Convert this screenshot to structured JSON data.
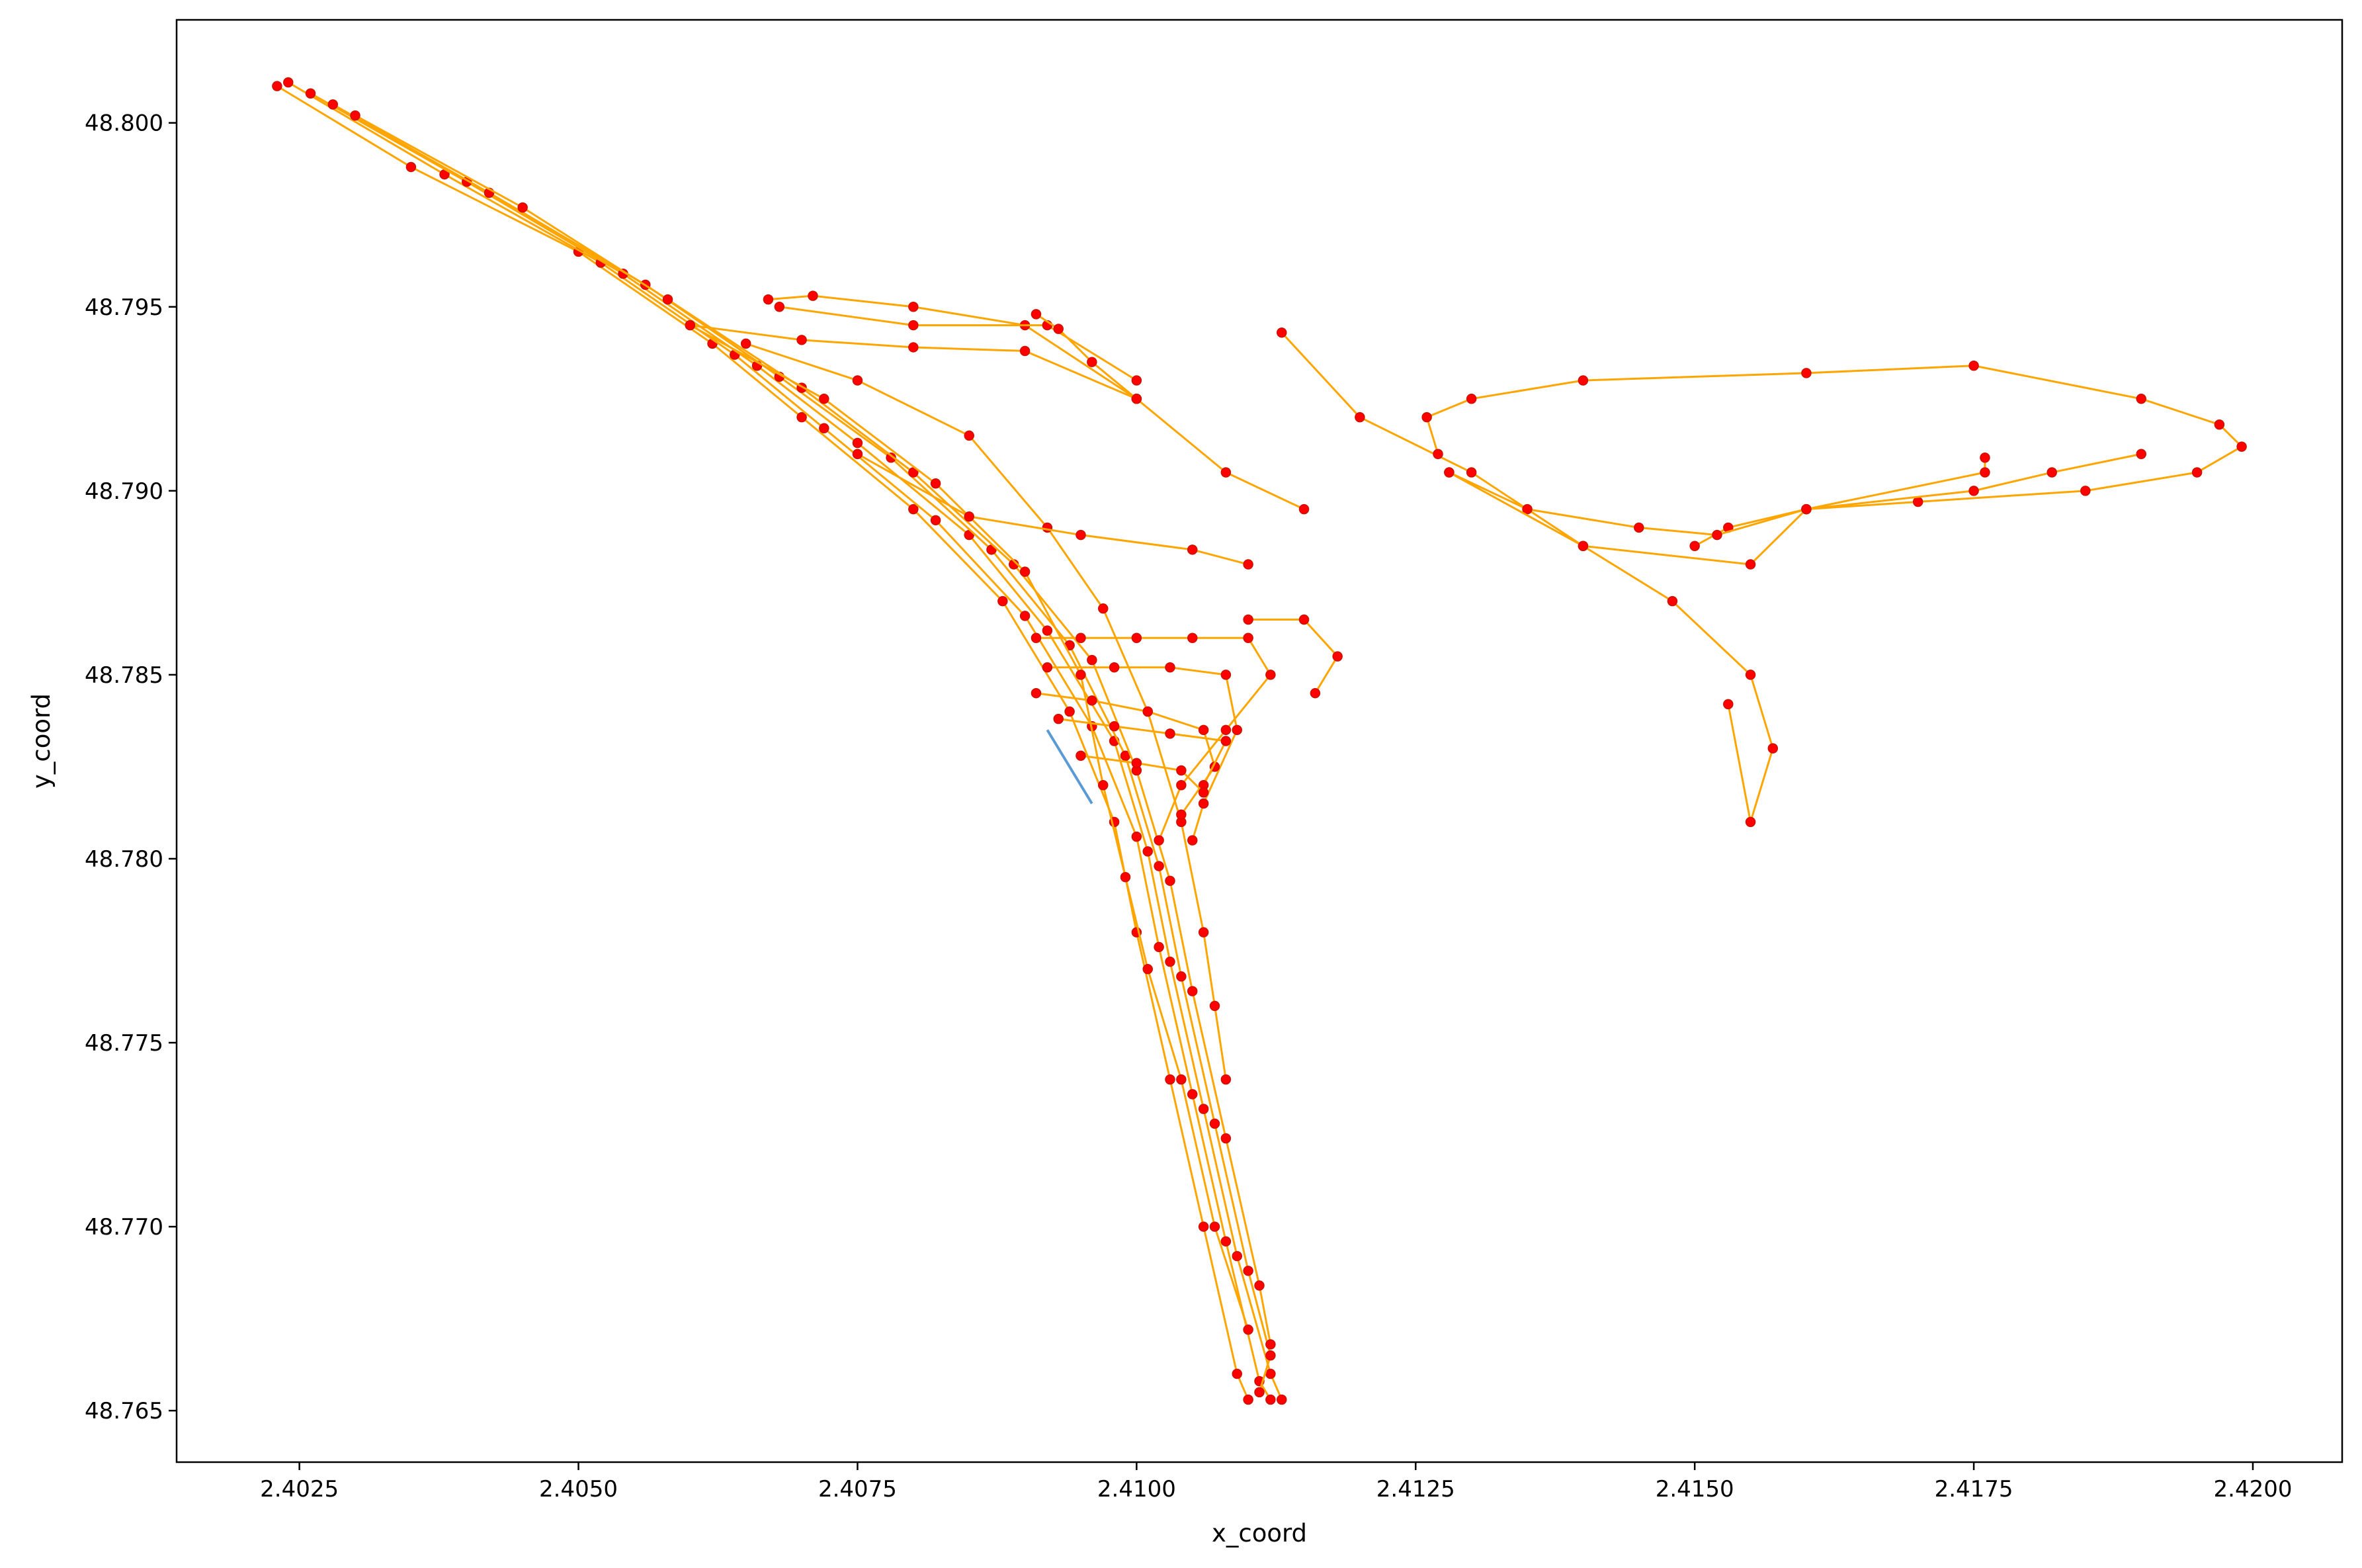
{
  "chart_data": {
    "type": "scatter",
    "title": "",
    "xlabel": "x_coord",
    "ylabel": "y_coord",
    "xlim": [
      2.4014,
      2.4208
    ],
    "ylim": [
      48.7636,
      48.8028
    ],
    "xticks": [
      2.4025,
      2.405,
      2.4075,
      2.41,
      2.4125,
      2.415,
      2.4175,
      2.42
    ],
    "xtick_labels": [
      "2.4025",
      "2.4050",
      "2.4075",
      "2.4100",
      "2.4125",
      "2.4150",
      "2.4175",
      "2.4200"
    ],
    "yticks": [
      48.765,
      48.77,
      48.775,
      48.78,
      48.785,
      48.79,
      48.795,
      48.8
    ],
    "ytick_labels": [
      "48.765",
      "48.770",
      "48.775",
      "48.780",
      "48.785",
      "48.790",
      "48.795",
      "48.800"
    ],
    "grid": false,
    "colors": {
      "line": "#ffa500",
      "marker": "#ff0000",
      "marker_edge": "#cc1100",
      "secondary_line": "#5b9bd5"
    },
    "series": [
      {
        "values": [
          [
            2.4023,
            48.801
          ],
          [
            2.4035,
            48.7988
          ],
          [
            2.405,
            48.7965
          ],
          [
            2.4062,
            48.794
          ],
          [
            2.407,
            48.792
          ],
          [
            2.408,
            48.7895
          ],
          [
            2.4088,
            48.787
          ],
          [
            2.4094,
            48.784
          ],
          [
            2.4098,
            48.781
          ],
          [
            2.41,
            48.778
          ],
          [
            2.4103,
            48.774
          ],
          [
            2.4106,
            48.77
          ],
          [
            2.4109,
            48.766
          ],
          [
            2.411,
            48.7653
          ]
        ]
      },
      {
        "values": [
          [
            2.4024,
            48.8011
          ],
          [
            2.4038,
            48.7986
          ],
          [
            2.4052,
            48.7962
          ],
          [
            2.4064,
            48.7937
          ],
          [
            2.4072,
            48.7917
          ],
          [
            2.4082,
            48.7892
          ],
          [
            2.409,
            48.7866
          ],
          [
            2.4096,
            48.7836
          ],
          [
            2.41,
            48.7806
          ],
          [
            2.4102,
            48.7776
          ],
          [
            2.4105,
            48.7736
          ],
          [
            2.4108,
            48.7696
          ],
          [
            2.4111,
            48.7658
          ],
          [
            2.4112,
            48.7653
          ]
        ]
      },
      {
        "values": [
          [
            2.4026,
            48.8008
          ],
          [
            2.404,
            48.7984
          ],
          [
            2.4054,
            48.7959
          ],
          [
            2.4066,
            48.7934
          ],
          [
            2.4075,
            48.7913
          ],
          [
            2.4085,
            48.7888
          ],
          [
            2.4092,
            48.7862
          ],
          [
            2.4098,
            48.7832
          ],
          [
            2.4101,
            48.7802
          ],
          [
            2.4103,
            48.7772
          ],
          [
            2.4106,
            48.7732
          ],
          [
            2.4109,
            48.7692
          ],
          [
            2.4112,
            48.766
          ],
          [
            2.4113,
            48.7653
          ]
        ]
      },
      {
        "values": [
          [
            2.4028,
            48.8005
          ],
          [
            2.4042,
            48.7981
          ],
          [
            2.4056,
            48.7956
          ],
          [
            2.4068,
            48.7931
          ],
          [
            2.4078,
            48.7909
          ],
          [
            2.4087,
            48.7884
          ],
          [
            2.4094,
            48.7858
          ],
          [
            2.4099,
            48.7828
          ],
          [
            2.4102,
            48.7798
          ],
          [
            2.4104,
            48.7768
          ],
          [
            2.4107,
            48.7728
          ],
          [
            2.411,
            48.7688
          ],
          [
            2.4112,
            48.7665
          ],
          [
            2.4111,
            48.7655
          ]
        ]
      },
      {
        "values": [
          [
            2.403,
            48.8002
          ],
          [
            2.4045,
            48.7977
          ],
          [
            2.4058,
            48.7952
          ],
          [
            2.407,
            48.7928
          ],
          [
            2.408,
            48.7905
          ],
          [
            2.4089,
            48.788
          ],
          [
            2.4096,
            48.7854
          ],
          [
            2.41,
            48.7824
          ],
          [
            2.4103,
            48.7794
          ],
          [
            2.4105,
            48.7764
          ],
          [
            2.4108,
            48.7724
          ],
          [
            2.4111,
            48.7684
          ],
          [
            2.4112,
            48.7668
          ]
        ]
      },
      {
        "values": [
          [
            2.406,
            48.7945
          ],
          [
            2.4072,
            48.7925
          ],
          [
            2.4082,
            48.7902
          ],
          [
            2.409,
            48.7878
          ],
          [
            2.4095,
            48.785
          ],
          [
            2.4097,
            48.782
          ],
          [
            2.4099,
            48.7795
          ],
          [
            2.4101,
            48.777
          ],
          [
            2.4104,
            48.774
          ],
          [
            2.4107,
            48.77
          ],
          [
            2.411,
            48.7672
          ]
        ]
      },
      {
        "values": [
          [
            2.4065,
            48.794
          ],
          [
            2.4075,
            48.793
          ],
          [
            2.4085,
            48.7915
          ],
          [
            2.4092,
            48.789
          ],
          [
            2.4097,
            48.7868
          ],
          [
            2.4101,
            48.784
          ],
          [
            2.4104,
            48.781
          ],
          [
            2.4106,
            48.778
          ],
          [
            2.4107,
            48.776
          ],
          [
            2.4108,
            48.774
          ]
        ]
      },
      {
        "values": [
          [
            2.4067,
            48.7952
          ],
          [
            2.4071,
            48.7953
          ],
          [
            2.408,
            48.795
          ],
          [
            2.409,
            48.7945
          ],
          [
            2.41,
            48.7925
          ],
          [
            2.4108,
            48.7905
          ],
          [
            2.4115,
            48.7895
          ]
        ]
      },
      {
        "values": [
          [
            2.406,
            48.7945
          ],
          [
            2.407,
            48.7941
          ],
          [
            2.408,
            48.7939
          ],
          [
            2.409,
            48.7938
          ],
          [
            2.41,
            48.7925
          ]
        ]
      },
      {
        "values": [
          [
            2.4068,
            48.795
          ],
          [
            2.408,
            48.7945
          ],
          [
            2.4092,
            48.7945
          ],
          [
            2.41,
            48.793
          ]
        ]
      },
      {
        "values": [
          [
            2.4091,
            48.7948
          ],
          [
            2.4093,
            48.7944
          ],
          [
            2.4096,
            48.7935
          ],
          [
            2.41,
            48.7925
          ]
        ]
      },
      {
        "values": [
          [
            2.4075,
            48.791
          ],
          [
            2.4085,
            48.7893
          ],
          [
            2.4095,
            48.7888
          ],
          [
            2.4105,
            48.7884
          ],
          [
            2.411,
            48.788
          ]
        ]
      },
      {
        "values": [
          [
            2.4113,
            48.7943
          ],
          [
            2.412,
            48.792
          ],
          [
            2.413,
            48.7905
          ],
          [
            2.414,
            48.7885
          ],
          [
            2.4148,
            48.787
          ],
          [
            2.4155,
            48.785
          ],
          [
            2.4157,
            48.783
          ],
          [
            2.4155,
            48.781
          ],
          [
            2.4153,
            48.7842
          ]
        ]
      },
      {
        "values": [
          [
            2.4127,
            48.791
          ],
          [
            2.4126,
            48.792
          ],
          [
            2.413,
            48.7925
          ],
          [
            2.414,
            48.793
          ],
          [
            2.416,
            48.7932
          ],
          [
            2.4175,
            48.7934
          ],
          [
            2.419,
            48.7925
          ],
          [
            2.4197,
            48.7918
          ],
          [
            2.4199,
            48.7912
          ],
          [
            2.4195,
            48.7905
          ],
          [
            2.4185,
            48.79
          ],
          [
            2.417,
            48.7897
          ],
          [
            2.416,
            48.7895
          ],
          [
            2.4153,
            48.789
          ],
          [
            2.415,
            48.7885
          ]
        ]
      },
      {
        "values": [
          [
            2.4128,
            48.7905
          ],
          [
            2.4135,
            48.7895
          ],
          [
            2.4145,
            48.789
          ],
          [
            2.4152,
            48.7888
          ],
          [
            2.416,
            48.7895
          ],
          [
            2.4175,
            48.79
          ],
          [
            2.4182,
            48.7905
          ],
          [
            2.419,
            48.791
          ]
        ]
      },
      {
        "values": [
          [
            2.4128,
            48.7905
          ],
          [
            2.414,
            48.7885
          ],
          [
            2.4155,
            48.788
          ],
          [
            2.416,
            48.7895
          ],
          [
            2.4176,
            48.7905
          ],
          [
            2.4176,
            48.7909
          ]
        ]
      },
      {
        "values": [
          [
            2.411,
            48.7865
          ],
          [
            2.4115,
            48.7865
          ],
          [
            2.4118,
            48.7855
          ],
          [
            2.4116,
            48.7845
          ]
        ]
      },
      {
        "values": [
          [
            2.4091,
            48.786
          ],
          [
            2.4095,
            48.786
          ],
          [
            2.41,
            48.786
          ],
          [
            2.4105,
            48.786
          ],
          [
            2.411,
            48.786
          ],
          [
            2.4112,
            48.785
          ],
          [
            2.4108,
            48.7835
          ],
          [
            2.4104,
            48.782
          ],
          [
            2.4102,
            48.7805
          ]
        ]
      },
      {
        "values": [
          [
            2.4092,
            48.7852
          ],
          [
            2.4098,
            48.7852
          ],
          [
            2.4103,
            48.7852
          ],
          [
            2.4108,
            48.785
          ],
          [
            2.4109,
            48.7835
          ],
          [
            2.4106,
            48.7815
          ],
          [
            2.4105,
            48.7805
          ]
        ]
      },
      {
        "values": [
          [
            2.4091,
            48.7845
          ],
          [
            2.4096,
            48.7843
          ],
          [
            2.4101,
            48.784
          ],
          [
            2.4106,
            48.7835
          ],
          [
            2.4107,
            48.7825
          ],
          [
            2.4104,
            48.7812
          ]
        ]
      },
      {
        "values": [
          [
            2.4093,
            48.7838
          ],
          [
            2.4098,
            48.7836
          ],
          [
            2.4103,
            48.7834
          ],
          [
            2.4108,
            48.7832
          ],
          [
            2.4106,
            48.782
          ]
        ]
      },
      {
        "values": [
          [
            2.4095,
            48.7828
          ],
          [
            2.41,
            48.7826
          ],
          [
            2.4104,
            48.7824
          ],
          [
            2.4106,
            48.7818
          ]
        ]
      }
    ],
    "secondary_segment": [
      [
        2.4092,
        48.7835
      ],
      [
        2.4096,
        48.7815
      ]
    ]
  }
}
